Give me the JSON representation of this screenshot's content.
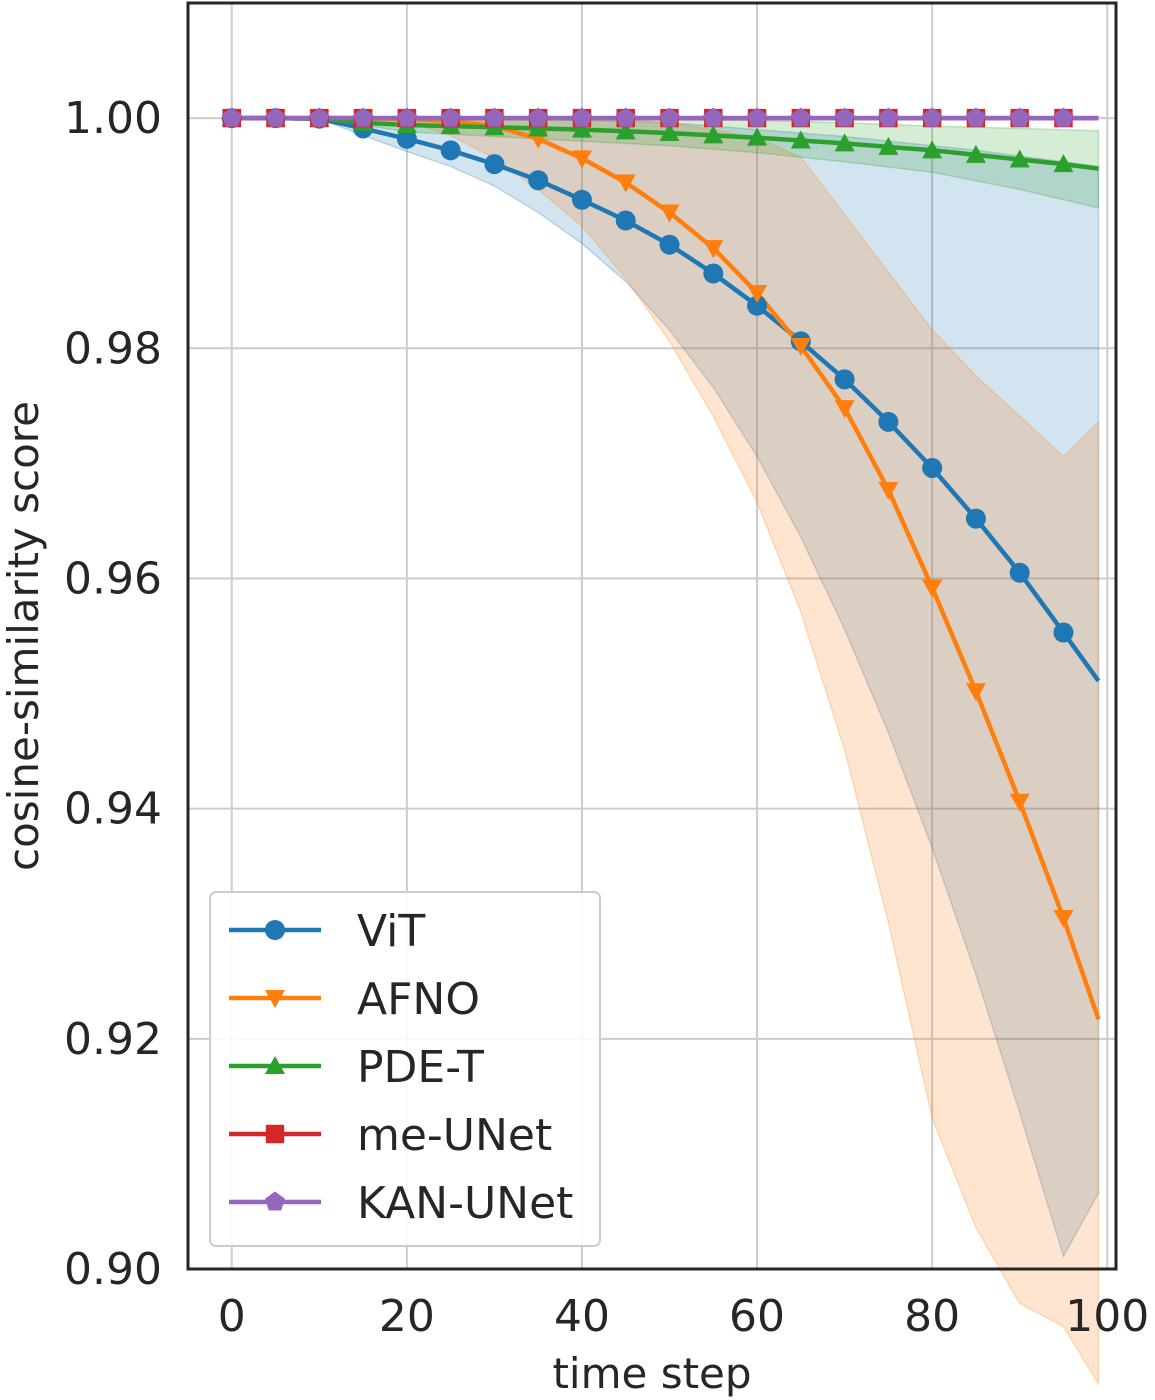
{
  "chart_data": {
    "type": "line",
    "title": "",
    "xlabel": "time step",
    "ylabel": "cosine-similarity score",
    "xlim": [
      -5,
      101
    ],
    "ylim": [
      0.9,
      1.01
    ],
    "xticks": [
      0,
      20,
      40,
      60,
      80,
      100
    ],
    "xtick_labels": [
      "0",
      "20",
      "40",
      "60",
      "80",
      "100"
    ],
    "yticks": [
      0.9,
      0.92,
      0.94,
      0.96,
      0.98,
      1.0
    ],
    "ytick_labels": [
      "0.90",
      "0.92",
      "0.94",
      "0.96",
      "0.98",
      "1.00"
    ],
    "grid": true,
    "legend_position": "bottom-left",
    "marker_x": [
      0,
      5,
      10,
      15,
      20,
      25,
      30,
      35,
      40,
      45,
      50,
      55,
      60,
      65,
      70,
      75,
      80,
      85,
      90,
      95
    ],
    "series": [
      {
        "name": "ViT",
        "color": "#1f77b4",
        "marker": "circle",
        "x": [
          0,
          5,
          10,
          15,
          20,
          25,
          30,
          35,
          40,
          45,
          50,
          55,
          60,
          65,
          70,
          75,
          80,
          85,
          90,
          95,
          99
        ],
        "values": [
          1.0,
          1.0,
          0.99995,
          0.9991,
          0.9982,
          0.9972,
          0.996,
          0.9946,
          0.9929,
          0.9911,
          0.989,
          0.9865,
          0.9837,
          0.9806,
          0.9773,
          0.9736,
          0.9696,
          0.9652,
          0.9605,
          0.9553,
          0.9511
        ],
        "band_x": [
          0,
          10,
          15,
          20,
          25,
          30,
          35,
          40,
          45,
          50,
          55,
          60,
          65,
          70,
          75,
          80,
          85,
          90,
          95,
          99
        ],
        "band_upper": [
          1.0,
          1.0,
          1.0,
          1.0,
          1.0,
          1.0,
          0.9999,
          0.9998,
          0.9997,
          0.9996,
          0.9993,
          0.999,
          0.9987,
          0.9984,
          0.998,
          0.9976,
          0.9972,
          0.9967,
          0.9962,
          0.9958
        ],
        "band_lower": [
          1.0,
          0.9999,
          0.9985,
          0.9971,
          0.9958,
          0.9941,
          0.9918,
          0.9891,
          0.9858,
          0.9816,
          0.9766,
          0.9706,
          0.9636,
          0.9556,
          0.9466,
          0.9366,
          0.9256,
          0.9136,
          0.9011,
          0.9066
        ]
      },
      {
        "name": "AFNO",
        "color": "#ff7f0e",
        "marker": "triangle-down",
        "x": [
          0,
          5,
          10,
          15,
          20,
          25,
          30,
          35,
          40,
          45,
          50,
          55,
          60,
          65,
          70,
          75,
          80,
          85,
          90,
          95,
          99
        ],
        "values": [
          1.0,
          1.0,
          1.0,
          1.0,
          0.9999,
          0.99975,
          0.9993,
          0.9982,
          0.9965,
          0.9944,
          0.9918,
          0.9887,
          0.9848,
          0.9802,
          0.9748,
          0.9677,
          0.9592,
          0.9502,
          0.9406,
          0.9305,
          0.9217
        ],
        "band_x": [
          0,
          10,
          20,
          25,
          30,
          35,
          40,
          45,
          50,
          55,
          60,
          65,
          70,
          75,
          80,
          85,
          90,
          95,
          99
        ],
        "band_upper": [
          1.0,
          1.0,
          1.0,
          1.0,
          1.0,
          1.0,
          1.0,
          0.9999,
          0.9996,
          0.999,
          0.9983,
          0.9966,
          0.9916,
          0.9866,
          0.9816,
          0.9776,
          0.9741,
          0.9706,
          0.9736
        ],
        "band_lower": [
          1.0,
          1.0,
          0.9997,
          0.9985,
          0.9965,
          0.9938,
          0.9906,
          0.9861,
          0.9806,
          0.9741,
          0.9666,
          0.9571,
          0.9451,
          0.9301,
          0.9131,
          0.9036,
          0.897,
          0.895,
          0.89
        ]
      },
      {
        "name": "PDE-T",
        "color": "#2ca02c",
        "marker": "triangle-up",
        "x": [
          0,
          5,
          10,
          15,
          20,
          25,
          30,
          35,
          40,
          45,
          50,
          55,
          60,
          65,
          70,
          75,
          80,
          85,
          90,
          95,
          99
        ],
        "values": [
          1.0,
          1.0,
          0.99995,
          0.9996,
          0.9994,
          0.9993,
          0.9992,
          0.9991,
          0.999,
          0.99885,
          0.9987,
          0.9985,
          0.9983,
          0.99805,
          0.9978,
          0.9975,
          0.9972,
          0.9968,
          0.9964,
          0.996,
          0.9956
        ],
        "band_x": [
          0,
          10,
          20,
          30,
          40,
          50,
          60,
          70,
          80,
          90,
          99
        ],
        "band_upper": [
          1.0,
          1.0,
          1.0,
          0.99995,
          0.9999,
          0.99985,
          0.9998,
          0.9996,
          0.9993,
          0.9991,
          0.9989
        ],
        "band_lower": [
          1.0,
          1.0,
          0.9988,
          0.9984,
          0.998,
          0.9976,
          0.997,
          0.9962,
          0.9953,
          0.9938,
          0.9922
        ]
      },
      {
        "name": "me-UNet",
        "color": "#d62728",
        "marker": "square",
        "x": [
          0,
          5,
          10,
          15,
          20,
          25,
          30,
          35,
          40,
          45,
          50,
          55,
          60,
          65,
          70,
          75,
          80,
          85,
          90,
          95,
          99
        ],
        "values": [
          1.0,
          1.0,
          1.0,
          1.0,
          1.0,
          1.0,
          1.0,
          1.0,
          1.0,
          1.0,
          1.0,
          1.0,
          1.0,
          1.0,
          1.0,
          1.0,
          1.0,
          1.0,
          1.0,
          1.0,
          1.0
        ]
      },
      {
        "name": "KAN-UNet",
        "color": "#9467bd",
        "marker": "pentagon",
        "x": [
          0,
          5,
          10,
          15,
          20,
          25,
          30,
          35,
          40,
          45,
          50,
          55,
          60,
          65,
          70,
          75,
          80,
          85,
          90,
          95,
          99
        ],
        "values": [
          1.0,
          1.0,
          1.0,
          1.0,
          1.0,
          1.0,
          1.0,
          1.0,
          1.0,
          1.0,
          1.0,
          1.0,
          1.0,
          1.0,
          1.0,
          1.0,
          1.0,
          1.0,
          1.0,
          1.0,
          1.0
        ]
      }
    ]
  }
}
